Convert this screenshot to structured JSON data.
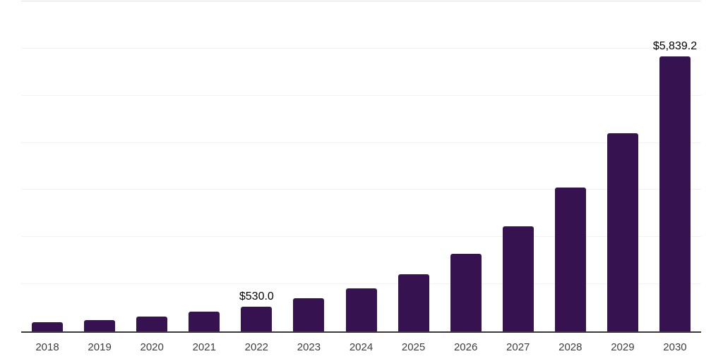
{
  "chart_data": {
    "type": "bar",
    "title": "",
    "xlabel": "",
    "ylabel": "",
    "categories": [
      "2018",
      "2019",
      "2020",
      "2021",
      "2022",
      "2023",
      "2024",
      "2025",
      "2026",
      "2027",
      "2028",
      "2029",
      "2030"
    ],
    "values": [
      195,
      240,
      315,
      415,
      530,
      705,
      915,
      1210,
      1650,
      2230,
      3050,
      4210,
      5839.2
    ],
    "data_labels": [
      "",
      "",
      "",
      "",
      "$530.0",
      "",
      "",
      "",
      "",
      "",
      "",
      "",
      "$5,839.2"
    ],
    "ylim": [
      0,
      7000
    ],
    "gridline_step": 1000,
    "grid": true,
    "legend": false,
    "y_tick_labels_visible": false,
    "bar_color": "#361250",
    "axis_color": "#3a3a3a",
    "gridline_color": "#f2f2f2",
    "top_gridline_color": "#e4e4e4",
    "data_label_color": "#000000",
    "tick_label_color": "#3d3d3d",
    "background_color": "#ffffff"
  }
}
